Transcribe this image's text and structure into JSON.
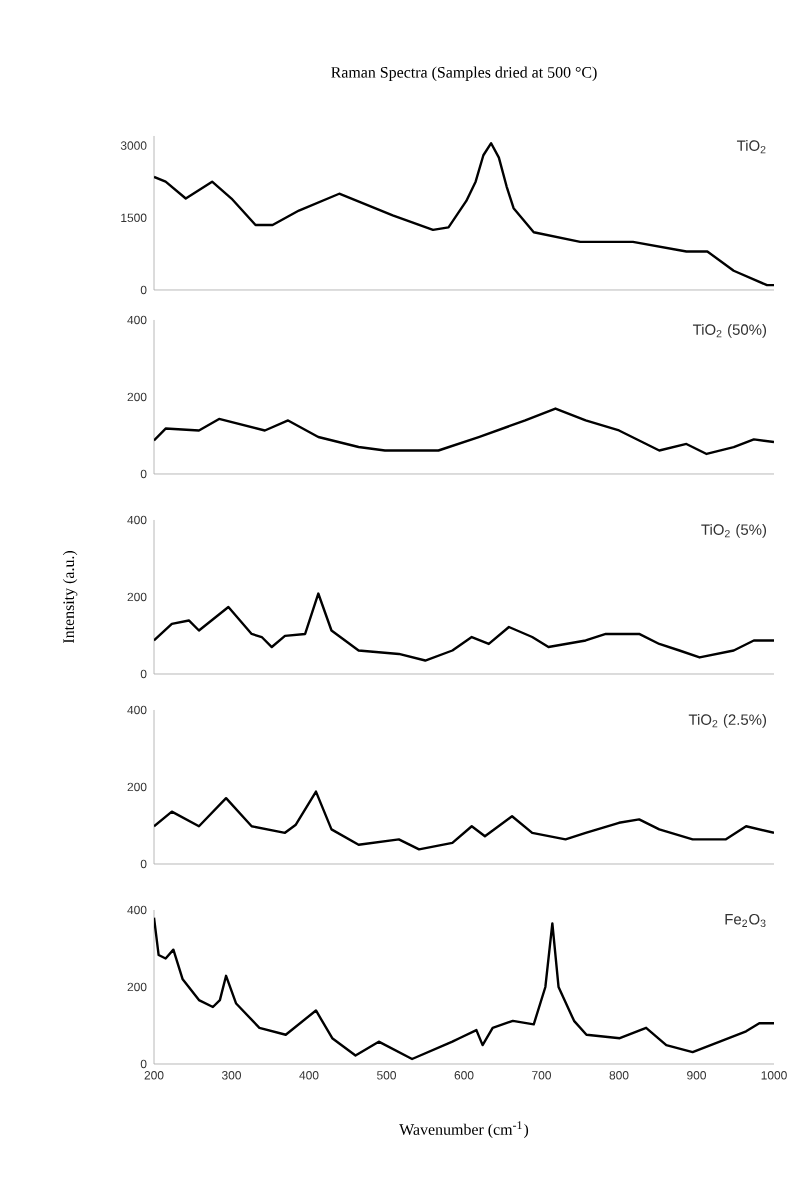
{
  "chart_data": [
    {
      "type": "line",
      "title": "Raman Spectra (Samples dried at 500 °C)",
      "xlim": [
        200,
        1000
      ],
      "ylim": [
        0,
        3200
      ],
      "yticks": [
        0,
        1500,
        3000
      ],
      "tick_labels": "y",
      "grid": false,
      "legend": false,
      "series": [
        {
          "name": "TiO$_{2}$",
          "color": "#000000",
          "x": [
            200,
            215,
            241,
            275,
            300,
            331,
            353,
            387,
            439,
            508,
            560,
            580,
            603,
            615,
            625,
            635,
            645,
            655,
            664,
            690,
            750,
            818,
            887,
            914,
            948,
            991,
            1000
          ],
          "values": [
            2350,
            2250,
            1900,
            2250,
            1900,
            1350,
            1350,
            1650,
            2000,
            1550,
            1250,
            1300,
            1850,
            2250,
            2800,
            3050,
            2750,
            2150,
            1700,
            1200,
            1000,
            1000,
            800,
            800,
            400,
            100,
            100
          ]
        }
      ]
    },
    {
      "type": "line",
      "xlim": [
        200,
        1000
      ],
      "ylim": [
        0,
        400
      ],
      "yticks": [
        0,
        200,
        400
      ],
      "tick_labels": "y",
      "grid": false,
      "legend": false,
      "series": [
        {
          "name": "TiO$_{2}$ (50%)",
          "color": "#000000",
          "x": [
            200,
            215,
            258,
            284,
            343,
            373,
            412,
            464,
            498,
            567,
            619,
            679,
            718,
            757,
            800,
            852,
            887,
            913,
            948,
            974,
            1000
          ],
          "values": [
            87,
            118,
            113,
            143,
            113,
            139,
            96,
            70,
            61,
            61,
            96,
            139,
            170,
            139,
            113,
            61,
            78,
            52,
            70,
            90,
            83
          ]
        }
      ]
    },
    {
      "type": "line",
      "xlim": [
        200,
        1000
      ],
      "ylim": [
        0,
        400
      ],
      "yticks": [
        0,
        200,
        400
      ],
      "tick_labels": "y",
      "grid": false,
      "legend": false,
      "ylabel": "Intensity (a.u.)",
      "series": [
        {
          "name": "TiO$_{2}$ (5%)",
          "color": "#000000",
          "x": [
            200,
            223,
            245,
            258,
            296,
            326,
            339,
            352,
            369,
            395,
            412,
            429,
            464,
            516,
            550,
            585,
            610,
            632,
            658,
            688,
            709,
            757,
            783,
            826,
            852,
            878,
            904,
            948,
            974,
            1000
          ],
          "values": [
            87,
            130,
            139,
            113,
            174,
            104,
            96,
            70,
            99,
            104,
            209,
            113,
            61,
            52,
            35,
            61,
            96,
            78,
            122,
            96,
            70,
            87,
            104,
            104,
            78,
            61,
            43,
            61,
            87,
            87
          ]
        }
      ]
    },
    {
      "type": "line",
      "xlim": [
        200,
        1000
      ],
      "ylim": [
        0,
        400
      ],
      "yticks": [
        0,
        200,
        400
      ],
      "tick_labels": "y",
      "grid": false,
      "legend": false,
      "series": [
        {
          "name": "TiO$_{2}$ (2.5%)",
          "color": "#000000",
          "x": [
            200,
            223,
            258,
            293,
            326,
            369,
            383,
            409,
            429,
            464,
            516,
            542,
            585,
            610,
            627,
            662,
            688,
            731,
            757,
            800,
            826,
            852,
            895,
            938,
            964,
            1000
          ],
          "values": [
            98,
            136,
            98,
            171,
            98,
            81,
            102,
            188,
            90,
            50,
            64,
            38,
            55,
            98,
            72,
            124,
            81,
            64,
            81,
            107,
            116,
            90,
            64,
            64,
            98,
            81
          ]
        }
      ]
    },
    {
      "type": "line",
      "xlim": [
        200,
        1000
      ],
      "ylim": [
        0,
        400
      ],
      "yticks": [
        0,
        200,
        400
      ],
      "xticks": [
        200,
        300,
        400,
        500,
        600,
        700,
        800,
        900,
        1000
      ],
      "grid": false,
      "legend": false,
      "xlabel": "Wavenumber (cm$^{-1}$)",
      "series": [
        {
          "name": "Fe$_{2}$O$_{3}$",
          "color": "#000000",
          "x": [
            200,
            206,
            215,
            225,
            237,
            258,
            276,
            285,
            293,
            306,
            336,
            370,
            409,
            430,
            460,
            490,
            533,
            585,
            594,
            616,
            624,
            637,
            663,
            690,
            705,
            714,
            722,
            742,
            758,
            801,
            835,
            861,
            895,
            930,
            964,
            981,
            1000
          ],
          "values": [
            380,
            283,
            274,
            297,
            220,
            166,
            148,
            166,
            229,
            157,
            94,
            76,
            139,
            67,
            22,
            58,
            13,
            58,
            67,
            88,
            49,
            94,
            112,
            103,
            200,
            365,
            200,
            112,
            76,
            67,
            94,
            49,
            31,
            58,
            85,
            106,
            106
          ]
        }
      ]
    }
  ]
}
